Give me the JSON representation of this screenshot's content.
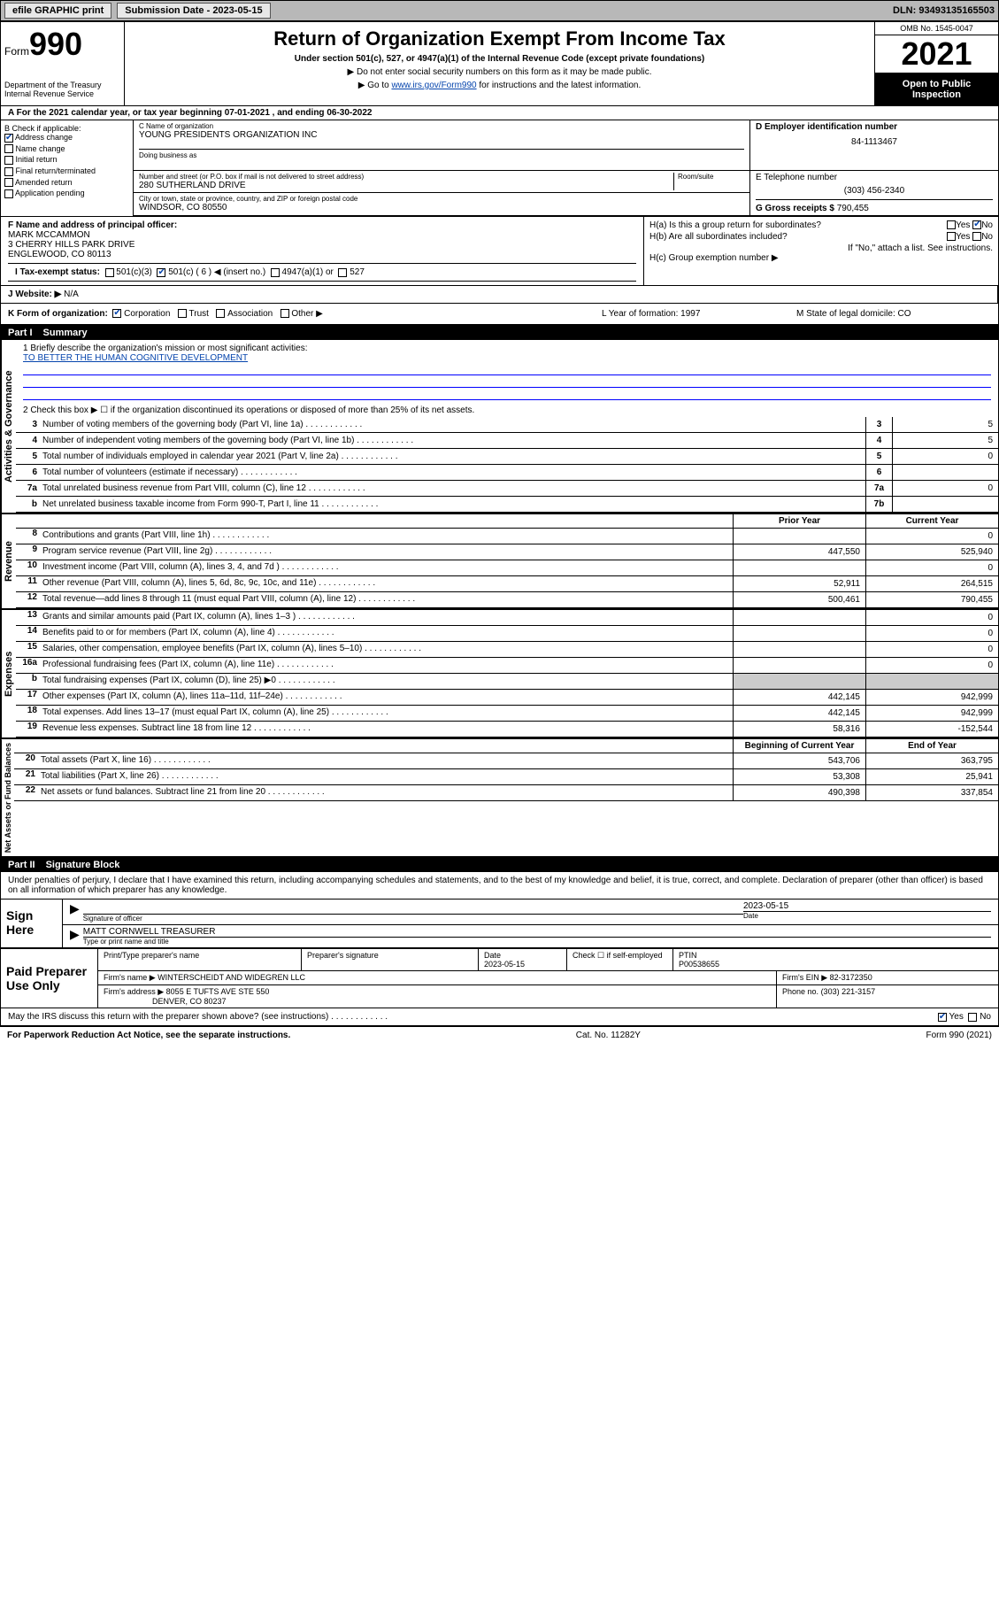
{
  "topbar": {
    "efile_label": "efile GRAPHIC print",
    "submission_label": "Submission Date - 2023-05-15",
    "dln": "DLN: 93493135165503"
  },
  "header": {
    "form_word": "Form",
    "form_num": "990",
    "dept": "Department of the Treasury\nInternal Revenue Service",
    "title": "Return of Organization Exempt From Income Tax",
    "subtitle": "Under section 501(c), 527, or 4947(a)(1) of the Internal Revenue Code (except private foundations)",
    "note1": "▶ Do not enter social security numbers on this form as it may be made public.",
    "note2_pre": "▶ Go to ",
    "note2_link": "www.irs.gov/Form990",
    "note2_post": " for instructions and the latest information.",
    "omb": "OMB No. 1545-0047",
    "year": "2021",
    "open": "Open to Public Inspection"
  },
  "row_a": "A For the 2021 calendar year, or tax year beginning 07-01-2021  , and ending 06-30-2022",
  "section_b": {
    "label": "B Check if applicable:",
    "items": [
      "Address change",
      "Name change",
      "Initial return",
      "Final return/terminated",
      "Amended return",
      "Application pending"
    ],
    "checked_idx": 0
  },
  "section_c": {
    "name_lbl": "C Name of organization",
    "name": "YOUNG PRESIDENTS ORGANIZATION INC",
    "dba_lbl": "Doing business as",
    "street_lbl": "Number and street (or P.O. box if mail is not delivered to street address)",
    "street": "280 SUTHERLAND DRIVE",
    "suite_lbl": "Room/suite",
    "city_lbl": "City or town, state or province, country, and ZIP or foreign postal code",
    "city": "WINDSOR, CO  80550"
  },
  "section_d": {
    "lbl": "D Employer identification number",
    "val": "84-1113467"
  },
  "section_e": {
    "lbl": "E Telephone number",
    "val": "(303) 456-2340"
  },
  "section_g": {
    "lbl": "G Gross receipts $",
    "val": "790,455"
  },
  "section_f": {
    "lbl": "F Name and address of principal officer:",
    "name": "MARK MCCAMMON",
    "addr1": "3 CHERRY HILLS PARK DRIVE",
    "addr2": "ENGLEWOOD, CO  80113"
  },
  "section_h": {
    "ha": "H(a)  Is this a group return for subordinates?",
    "ha_yes": "Yes",
    "ha_no": "No",
    "hb": "H(b)  Are all subordinates included?",
    "hb_yes": "Yes",
    "hb_no": "No",
    "hb_note": "If \"No,\" attach a list. See instructions.",
    "hc": "H(c)  Group exemption number ▶"
  },
  "row_i": {
    "lbl": "I  Tax-exempt status:",
    "opts": [
      "501(c)(3)",
      "501(c) ( 6 ) ◀ (insert no.)",
      "4947(a)(1) or",
      "527"
    ],
    "checked_idx": 1
  },
  "row_j": {
    "lbl": "J  Website: ▶",
    "val": "N/A"
  },
  "row_k": {
    "lbl": "K Form of organization:",
    "opts": [
      "Corporation",
      "Trust",
      "Association",
      "Other ▶"
    ],
    "checked_idx": 0,
    "l": "L Year of formation: 1997",
    "m": "M State of legal domicile: CO"
  },
  "part1": {
    "hdr_part": "Part I",
    "hdr_title": "Summary",
    "line1_lbl": "1  Briefly describe the organization's mission or most significant activities:",
    "line1_val": "TO BETTER THE HUMAN COGNITIVE DEVELOPMENT",
    "line2": "2   Check this box ▶ ☐  if the organization discontinued its operations or disposed of more than 25% of its net assets.",
    "lines_single": [
      {
        "n": "3",
        "t": "Number of voting members of the governing body (Part VI, line 1a)",
        "box": "3",
        "v": "5"
      },
      {
        "n": "4",
        "t": "Number of independent voting members of the governing body (Part VI, line 1b)",
        "box": "4",
        "v": "5"
      },
      {
        "n": "5",
        "t": "Total number of individuals employed in calendar year 2021 (Part V, line 2a)",
        "box": "5",
        "v": "0"
      },
      {
        "n": "6",
        "t": "Total number of volunteers (estimate if necessary)",
        "box": "6",
        "v": ""
      },
      {
        "n": "7a",
        "t": "Total unrelated business revenue from Part VIII, column (C), line 12",
        "box": "7a",
        "v": "0"
      },
      {
        "n": "b",
        "t": "Net unrelated business taxable income from Form 990-T, Part I, line 11",
        "box": "7b",
        "v": ""
      }
    ],
    "col_hdrs": {
      "prior": "Prior Year",
      "current": "Current Year"
    },
    "revenue": [
      {
        "n": "8",
        "t": "Contributions and grants (Part VIII, line 1h)",
        "p": "",
        "c": "0"
      },
      {
        "n": "9",
        "t": "Program service revenue (Part VIII, line 2g)",
        "p": "447,550",
        "c": "525,940"
      },
      {
        "n": "10",
        "t": "Investment income (Part VIII, column (A), lines 3, 4, and 7d )",
        "p": "",
        "c": "0"
      },
      {
        "n": "11",
        "t": "Other revenue (Part VIII, column (A), lines 5, 6d, 8c, 9c, 10c, and 11e)",
        "p": "52,911",
        "c": "264,515"
      },
      {
        "n": "12",
        "t": "Total revenue—add lines 8 through 11 (must equal Part VIII, column (A), line 12)",
        "p": "500,461",
        "c": "790,455"
      }
    ],
    "expenses": [
      {
        "n": "13",
        "t": "Grants and similar amounts paid (Part IX, column (A), lines 1–3 )",
        "p": "",
        "c": "0"
      },
      {
        "n": "14",
        "t": "Benefits paid to or for members (Part IX, column (A), line 4)",
        "p": "",
        "c": "0"
      },
      {
        "n": "15",
        "t": "Salaries, other compensation, employee benefits (Part IX, column (A), lines 5–10)",
        "p": "",
        "c": "0"
      },
      {
        "n": "16a",
        "t": "Professional fundraising fees (Part IX, column (A), line 11e)",
        "p": "",
        "c": "0"
      },
      {
        "n": "b",
        "t": "Total fundraising expenses (Part IX, column (D), line 25) ▶0",
        "p": "SHADE",
        "c": "SHADE"
      },
      {
        "n": "17",
        "t": "Other expenses (Part IX, column (A), lines 11a–11d, 11f–24e)",
        "p": "442,145",
        "c": "942,999"
      },
      {
        "n": "18",
        "t": "Total expenses. Add lines 13–17 (must equal Part IX, column (A), line 25)",
        "p": "442,145",
        "c": "942,999"
      },
      {
        "n": "19",
        "t": "Revenue less expenses. Subtract line 18 from line 12",
        "p": "58,316",
        "c": "-152,544"
      }
    ],
    "net_hdrs": {
      "begin": "Beginning of Current Year",
      "end": "End of Year"
    },
    "net": [
      {
        "n": "20",
        "t": "Total assets (Part X, line 16)",
        "p": "543,706",
        "c": "363,795"
      },
      {
        "n": "21",
        "t": "Total liabilities (Part X, line 26)",
        "p": "53,308",
        "c": "25,941"
      },
      {
        "n": "22",
        "t": "Net assets or fund balances. Subtract line 21 from line 20",
        "p": "490,398",
        "c": "337,854"
      }
    ],
    "vert_labels": {
      "gov": "Activities & Governance",
      "rev": "Revenue",
      "exp": "Expenses",
      "net": "Net Assets or\nFund Balances"
    }
  },
  "part2": {
    "hdr_part": "Part II",
    "hdr_title": "Signature Block",
    "penalties": "Under penalties of perjury, I declare that I have examined this return, including accompanying schedules and statements, and to the best of my knowledge and belief, it is true, correct, and complete. Declaration of preparer (other than officer) is based on all information of which preparer has any knowledge.",
    "sign_here": "Sign Here",
    "sig_officer_lbl": "Signature of officer",
    "sig_date": "2023-05-15",
    "sig_date_lbl": "Date",
    "sig_name": "MATT CORNWELL TREASURER",
    "sig_name_lbl": "Type or print name and title",
    "paid_lbl": "Paid Preparer Use Only",
    "prep_name_lbl": "Print/Type preparer's name",
    "prep_sig_lbl": "Preparer's signature",
    "prep_date_lbl": "Date",
    "prep_date": "2023-05-15",
    "prep_check_lbl": "Check ☐ if self-employed",
    "ptin_lbl": "PTIN",
    "ptin": "P00538655",
    "firm_name_lbl": "Firm's name    ▶",
    "firm_name": "WINTERSCHEIDT AND WIDEGREN LLC",
    "firm_ein_lbl": "Firm's EIN ▶",
    "firm_ein": "82-3172350",
    "firm_addr_lbl": "Firm's address ▶",
    "firm_addr1": "8055 E TUFTS AVE STE 550",
    "firm_addr2": "DENVER, CO  80237",
    "phone_lbl": "Phone no.",
    "phone": "(303) 221-3157",
    "may_irs": "May the IRS discuss this return with the preparer shown above? (see instructions)",
    "may_yes": "Yes",
    "may_no": "No"
  },
  "footer": {
    "left": "For Paperwork Reduction Act Notice, see the separate instructions.",
    "mid": "Cat. No. 11282Y",
    "right": "Form 990 (2021)"
  },
  "colors": {
    "topbar_bg": "#b8b8b8",
    "link": "#0645ad",
    "shade": "#cccccc"
  }
}
